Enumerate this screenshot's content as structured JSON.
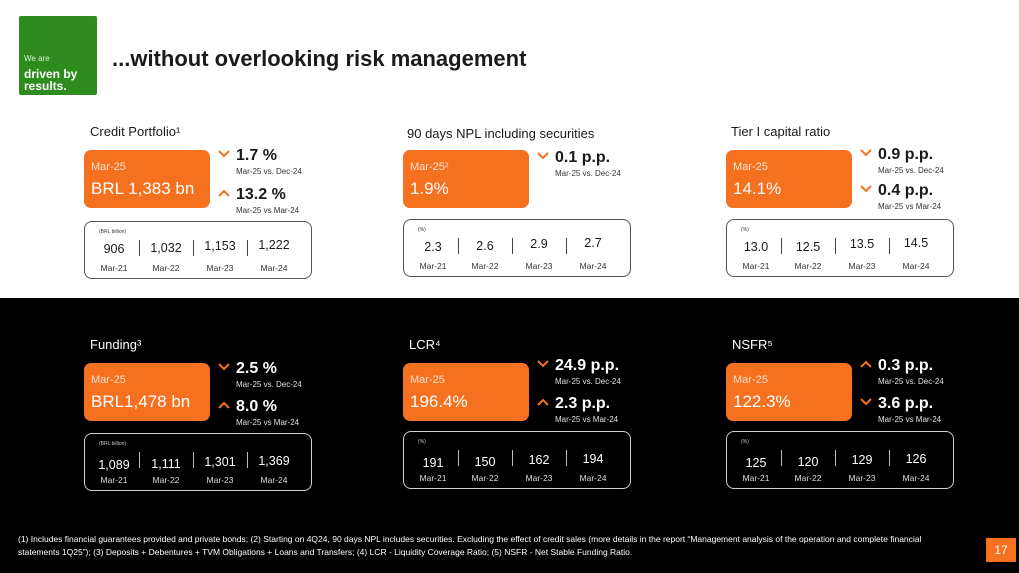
{
  "logo": {
    "small": "We are",
    "big_line1": "driven by",
    "big_line2": "results."
  },
  "title": "...without overlooking risk management",
  "colors": {
    "accent": "#f5701f",
    "brand_green": "#2e8b1d",
    "dark_band": "#000000"
  },
  "panels": [
    {
      "label": "Credit Portfolio¹",
      "period": "Mar-25",
      "value": "BRL 1,383 bn",
      "changes": [
        {
          "direction": "down",
          "value": "1.7 %",
          "sub": "Mar-25 vs. Dec-24"
        },
        {
          "direction": "up",
          "value": "13.2 %",
          "sub": "Mar-25 vs Mar-24"
        }
      ],
      "unit": "(BRL billion)",
      "history": [
        {
          "value": "906",
          "label": "Mar-21"
        },
        {
          "value": "1,032",
          "label": "Mar-22"
        },
        {
          "value": "1,153",
          "label": "Mar-23"
        },
        {
          "value": "1,222",
          "label": "Mar-24"
        }
      ]
    },
    {
      "label": "90 days NPL including securities",
      "period": "Mar-25²",
      "value": "1.9%",
      "changes": [
        {
          "direction": "down",
          "value": "0.1 p.p.",
          "sub": "Mar-25 vs. Dec-24"
        }
      ],
      "unit": "(%)",
      "history": [
        {
          "value": "2.3",
          "label": "Mar-21"
        },
        {
          "value": "2.6",
          "label": "Mar-22"
        },
        {
          "value": "2.9",
          "label": "Mar-23"
        },
        {
          "value": "2.7",
          "label": "Mar-24"
        }
      ]
    },
    {
      "label": "Tier I capital ratio",
      "period": "Mar-25",
      "value": "14.1%",
      "changes": [
        {
          "direction": "down",
          "value": "0.9 p.p.",
          "sub": "Mar-25 vs. Dec-24"
        },
        {
          "direction": "down",
          "value": "0.4 p.p.",
          "sub": "Mar-25 vs Mar-24"
        }
      ],
      "unit": "(%)",
      "history": [
        {
          "value": "13.0",
          "label": "Mar-21"
        },
        {
          "value": "12.5",
          "label": "Mar-22"
        },
        {
          "value": "13.5",
          "label": "Mar-23"
        },
        {
          "value": "14.5",
          "label": "Mar-24"
        }
      ]
    },
    {
      "label": "Funding³",
      "period": "Mar-25",
      "value": "BRL1,478 bn",
      "changes": [
        {
          "direction": "down",
          "value": "2.5 %",
          "sub": "Mar-25 vs. Dec-24"
        },
        {
          "direction": "up",
          "value": "8.0 %",
          "sub": "Mar-25 vs Mar-24"
        }
      ],
      "unit": "(BRL billion)",
      "history": [
        {
          "value": "1,089",
          "label": "Mar-21"
        },
        {
          "value": "1,111",
          "label": "Mar-22"
        },
        {
          "value": "1,301",
          "label": "Mar-23"
        },
        {
          "value": "1,369",
          "label": "Mar-24"
        }
      ]
    },
    {
      "label": "LCR⁴",
      "period": "Mar-25",
      "value": "196.4%",
      "changes": [
        {
          "direction": "down",
          "value": "24.9 p.p.",
          "sub": "Mar-25 vs. Dec-24"
        },
        {
          "direction": "up",
          "value": "2.3 p.p.",
          "sub": "Mar-25 vs Mar-24"
        }
      ],
      "unit": "(%)",
      "history": [
        {
          "value": "191",
          "label": "Mar-21"
        },
        {
          "value": "150",
          "label": "Mar-22"
        },
        {
          "value": "162",
          "label": "Mar-23"
        },
        {
          "value": "194",
          "label": "Mar-24"
        }
      ]
    },
    {
      "label": "NSFR⁵",
      "period": "Mar-25",
      "value": "122.3%",
      "changes": [
        {
          "direction": "up",
          "value": "0.3 p.p.",
          "sub": "Mar-25 vs. Dec-24"
        },
        {
          "direction": "down",
          "value": "3.6 p.p.",
          "sub": "Mar-25 vs Mar-24"
        }
      ],
      "unit": "(%)",
      "history": [
        {
          "value": "125",
          "label": "Mar-21"
        },
        {
          "value": "120",
          "label": "Mar-22"
        },
        {
          "value": "129",
          "label": "Mar-23"
        },
        {
          "value": "126",
          "label": "Mar-24"
        }
      ]
    }
  ],
  "footnote": "(1) Includes financial guarantees provided and private bonds; (2) Starting on 4Q24, 90 days NPL includes securities. Excluding the effect of credit sales (more details in the report “Management analysis of the operation and complete financial statements 1Q25”); (3) Deposits + Debentures + TVM Obligations + Loans and Transfers; (4) LCR - Liquidity Coverage Ratio; (5) NSFR - Net Stable Funding Ratio.",
  "page_number": "17"
}
